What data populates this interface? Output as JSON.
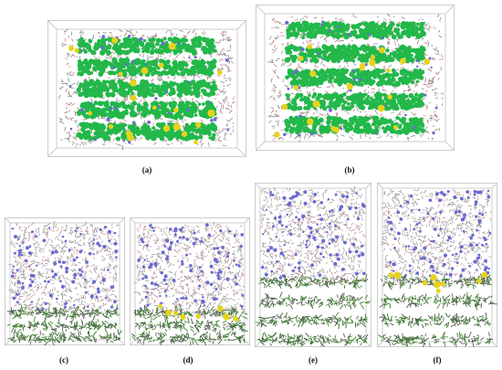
{
  "figure": {
    "panels": [
      {
        "id": "a",
        "label": "(a)",
        "kind": "top-view"
      },
      {
        "id": "b",
        "label": "(b)",
        "kind": "top-view"
      },
      {
        "id": "c",
        "label": "(c)",
        "kind": "side-view"
      },
      {
        "id": "d",
        "label": "(d)",
        "kind": "side-view"
      },
      {
        "id": "e",
        "label": "(e)",
        "kind": "side-view"
      },
      {
        "id": "f",
        "label": "(f)",
        "kind": "side-view"
      }
    ]
  },
  "colors": {
    "background": "#ffffff",
    "box_edge": "#b8b8b8",
    "polymer_green": "#22b84a",
    "polymer_dark_green": "#2f6e2a",
    "molecule_gray": "#8f8f8f",
    "molecule_pink": "#c88f98",
    "molecule_blue": "#6a6ad0",
    "sulfur_yellow": "#e8d21c"
  }
}
